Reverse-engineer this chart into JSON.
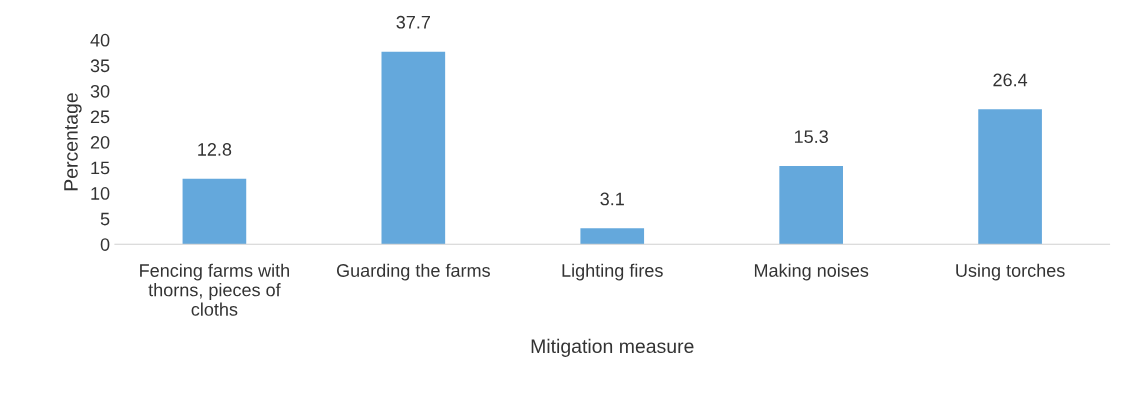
{
  "chart_data": {
    "type": "bar",
    "xlabel": "Mitigation measure",
    "ylabel": "Percentage",
    "categories": [
      "Fencing farms with thorns, pieces of cloths",
      "Guarding the farms",
      "Lighting fires",
      "Making noises",
      "Using torches"
    ],
    "values": [
      12.8,
      37.7,
      3.1,
      15.3,
      26.4
    ],
    "color": "#64a8dc",
    "ylim": [
      0,
      40
    ],
    "yticks": [
      0,
      5,
      10,
      15,
      20,
      25,
      30,
      35,
      40
    ],
    "grid": false,
    "data_labels": true
  }
}
